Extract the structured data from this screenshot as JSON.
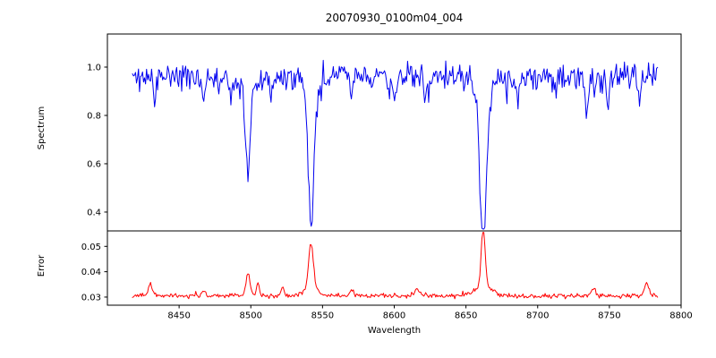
{
  "figure": {
    "title": "20070930_0100m04_004",
    "xlabel": "Wavelength",
    "background": "#ffffff",
    "frame_color": "#000000",
    "text_color": "#000000",
    "xticks": [
      {
        "v": 8450,
        "label": "8450"
      },
      {
        "v": 8500,
        "label": "8500"
      },
      {
        "v": 8550,
        "label": "8550"
      },
      {
        "v": 8600,
        "label": "8600"
      },
      {
        "v": 8650,
        "label": "8650"
      },
      {
        "v": 8700,
        "label": "8700"
      },
      {
        "v": 8750,
        "label": "8750"
      },
      {
        "v": 8800,
        "label": "8800"
      }
    ],
    "xlim": [
      8400,
      8800
    ]
  },
  "chart_data": [
    {
      "type": "line",
      "name": "spectrum",
      "title": "20070930_0100m04_004",
      "ylabel": "Spectrum",
      "xlabel": "",
      "color": "#0000f0",
      "xlim": [
        8400,
        8800
      ],
      "ylim": [
        0.322,
        1.137
      ],
      "yticks": [
        {
          "v": 0.4,
          "label": "0.4"
        },
        {
          "v": 0.6,
          "label": "0.6"
        },
        {
          "v": 0.8,
          "label": "0.8"
        },
        {
          "v": 1.0,
          "label": "1.0"
        }
      ],
      "grid": false,
      "legend": "none",
      "x_start": 8417.5,
      "x_end": 8784,
      "x_step": 0.7,
      "continuum": 0.965,
      "noise_sigma": 0.024,
      "dip_prob": 0.16,
      "dip_max": 0.07,
      "peak_prob": 0.04,
      "peak_max": 0.05,
      "seed": 11,
      "clamp": [
        0.33,
        1.135
      ],
      "absorption_lines": [
        {
          "center": 8433,
          "min": 0.875,
          "width": 1.2
        },
        {
          "center": 8467,
          "min": 0.865,
          "width": 1.1
        },
        {
          "center": 8486,
          "min": 0.885,
          "width": 1.0
        },
        {
          "center": 8498,
          "min": 0.6,
          "width": 1.6,
          "wing": {
            "depth": 0.05,
            "width": 4.0
          }
        },
        {
          "center": 8514,
          "min": 0.89,
          "width": 1.0
        },
        {
          "center": 8542,
          "min": 0.405,
          "width": 1.9,
          "wing": {
            "depth": 0.07,
            "width": 4.5
          }
        },
        {
          "center": 8570,
          "min": 0.88,
          "width": 1.2
        },
        {
          "center": 8600,
          "min": 0.865,
          "width": 1.2
        },
        {
          "center": 8622,
          "min": 0.86,
          "width": 1.3
        },
        {
          "center": 8662,
          "min": 0.36,
          "width": 2.2,
          "wing": {
            "depth": 0.09,
            "width": 5.5
          }
        },
        {
          "center": 8686,
          "min": 0.85,
          "width": 1.2
        },
        {
          "center": 8734,
          "min": 0.8,
          "width": 1.3
        },
        {
          "center": 8749,
          "min": 0.84,
          "width": 1.0
        },
        {
          "center": 8771,
          "min": 0.875,
          "width": 1.0
        }
      ]
    },
    {
      "type": "line",
      "name": "error",
      "ylabel": "Error",
      "xlabel": "Wavelength",
      "color": "#ff0000",
      "xlim": [
        8400,
        8800
      ],
      "ylim": [
        0.0268,
        0.0561
      ],
      "yticks": [
        {
          "v": 0.03,
          "label": "0.03"
        },
        {
          "v": 0.04,
          "label": "0.04"
        },
        {
          "v": 0.05,
          "label": "0.05"
        }
      ],
      "grid": false,
      "legend": "none",
      "x_start": 8417.5,
      "x_end": 8784,
      "x_step": 0.7,
      "baseline": 0.0305,
      "noise_sigma": 0.00045,
      "spike_prob": 0.06,
      "spike_max": 0.0012,
      "seed": 23,
      "clamp": [
        0.0285,
        0.0555
      ],
      "error_peaks": [
        {
          "center": 8430,
          "peak": 0.035,
          "width": 1.5
        },
        {
          "center": 8467,
          "peak": 0.0325,
          "width": 1.2
        },
        {
          "center": 8498,
          "peak": 0.039,
          "width": 1.5
        },
        {
          "center": 8505,
          "peak": 0.036,
          "width": 1.0
        },
        {
          "center": 8522,
          "peak": 0.034,
          "width": 1.0
        },
        {
          "center": 8542,
          "peak": 0.0475,
          "width": 1.6,
          "wing": {
            "height": 0.0035,
            "width": 4.5
          }
        },
        {
          "center": 8570,
          "peak": 0.033,
          "width": 1.2
        },
        {
          "center": 8616,
          "peak": 0.033,
          "width": 1.5
        },
        {
          "center": 8662,
          "peak": 0.054,
          "width": 1.3,
          "wing": {
            "height": 0.0045,
            "width": 5.5
          }
        },
        {
          "center": 8739,
          "peak": 0.0335,
          "width": 1.5
        },
        {
          "center": 8776,
          "peak": 0.0355,
          "width": 1.5
        }
      ]
    }
  ]
}
